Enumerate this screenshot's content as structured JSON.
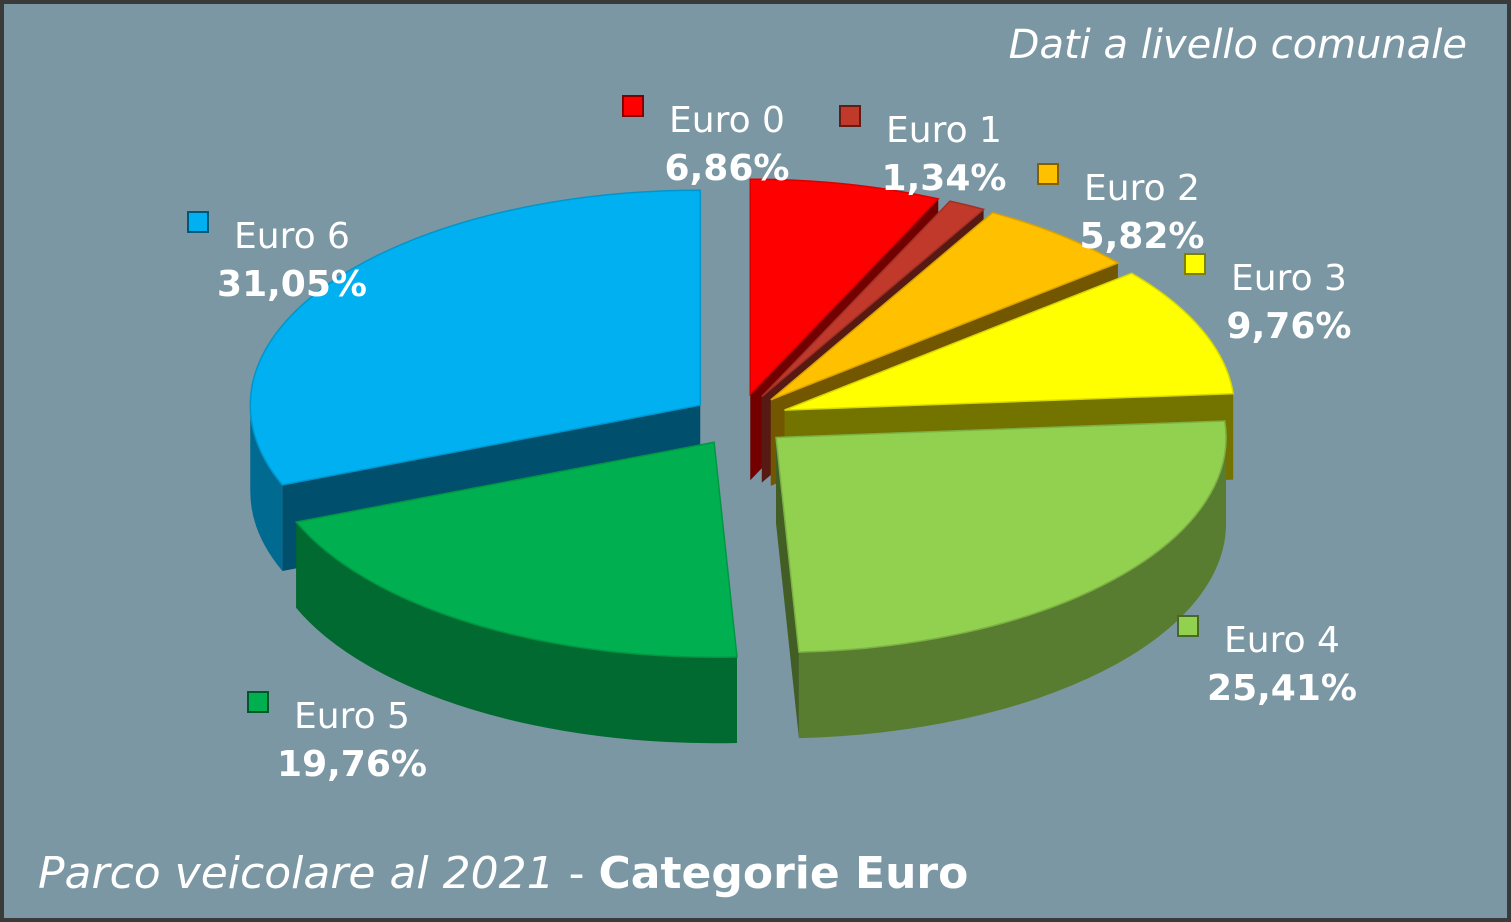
{
  "subtitle": "Dati a livello comunale",
  "footer": {
    "italic_part": "Parco veicolare al 2021",
    "separator": " - ",
    "bold_part": "Categorie Euro"
  },
  "chart_data": {
    "type": "pie",
    "title": "Parco veicolare al 2021 - Categorie Euro",
    "categories": [
      "Euro 0",
      "Euro 1",
      "Euro 2",
      "Euro 3",
      "Euro 4",
      "Euro 5",
      "Euro 6"
    ],
    "values": [
      6.86,
      1.34,
      5.82,
      9.76,
      25.41,
      19.76,
      31.05
    ],
    "value_labels": [
      "6,86%",
      "1,34%",
      "5,82%",
      "9,76%",
      "25,41%",
      "19,76%",
      "31,05%"
    ],
    "colors": [
      "#ff0000",
      "#c0392b",
      "#ffc000",
      "#ffff00",
      "#92d050",
      "#00b050",
      "#00b0f0"
    ],
    "legend": "labels-on-slices",
    "style": "exploded-3d"
  }
}
